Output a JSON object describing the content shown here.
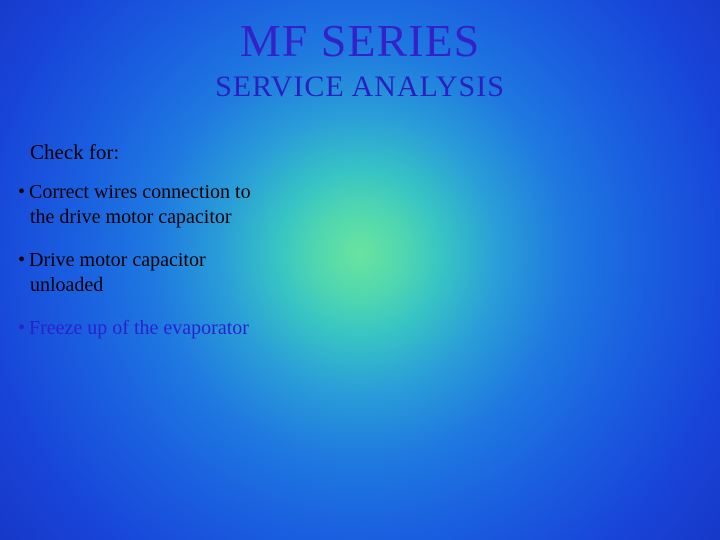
{
  "colors": {
    "title_color": "#3322c8",
    "subtitle_color": "#2a20c0",
    "checkfor_color": "#000000",
    "bullet_black": "#000000",
    "bullet_blue": "#2a20d0"
  },
  "title": "MF SERIES",
  "subtitle": "SERVICE ANALYSIS",
  "checkfor": "Check for:",
  "bullets": [
    {
      "text": "Correct wires connection to the drive motor capacitor",
      "color": "#000000"
    },
    {
      "text": "Drive motor capacitor unloaded",
      "color": "#000000"
    },
    {
      "text": "Freeze up of the evaporator",
      "color": "#2a20d0"
    }
  ]
}
